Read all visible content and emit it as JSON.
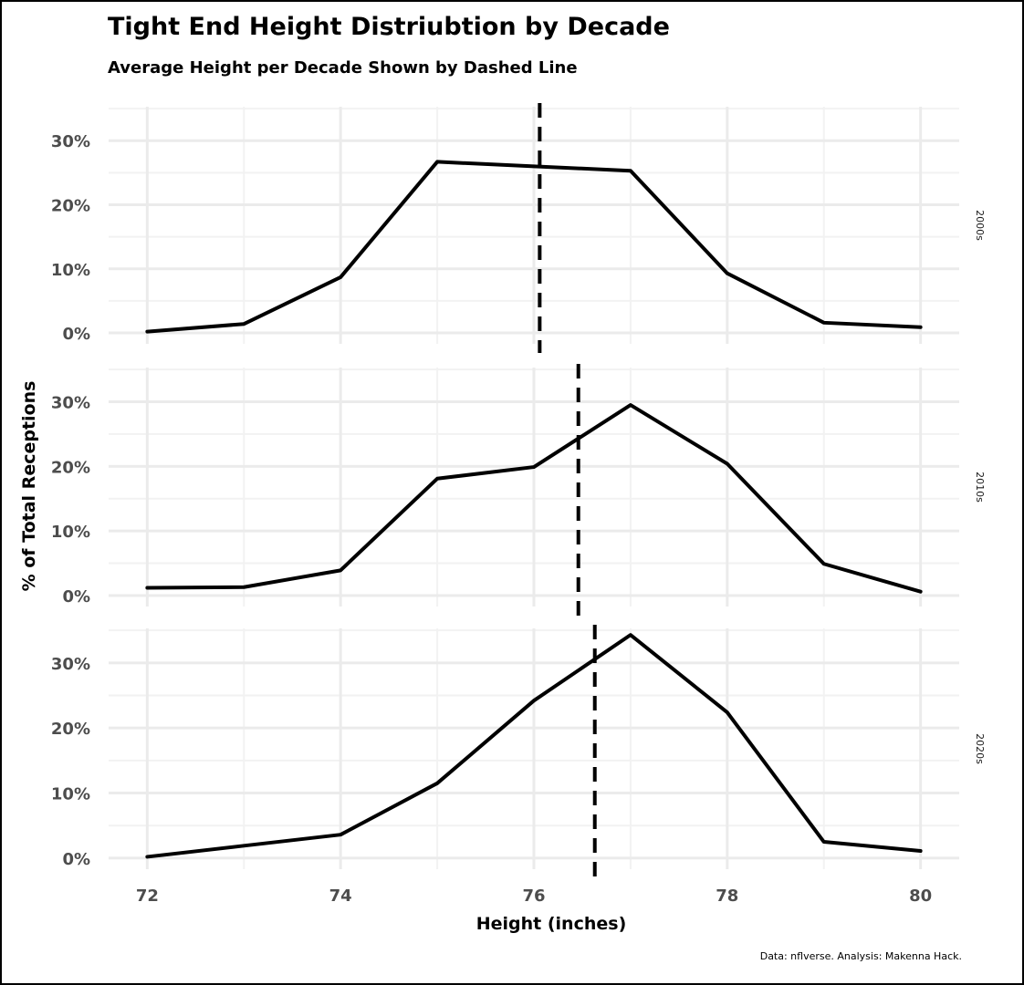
{
  "title": "Tight End Height Distriubtion by Decade",
  "subtitle": "Average Height per Decade Shown by Dashed Line",
  "caption": "Data: nflverse. Analysis: Makenna Hack.",
  "colors": {
    "line": "#000000",
    "grid_major": "#ebebeb",
    "grid_minor": "#f2f2f2",
    "tick_text": "#4d4d4d"
  },
  "chart_data": {
    "type": "line",
    "xlabel": "Height (inches)",
    "ylabel": "% of Total Receptions",
    "x": [
      72,
      73,
      74,
      75,
      76,
      77,
      78,
      79,
      80
    ],
    "x_ticks": [
      72,
      74,
      76,
      78,
      80
    ],
    "x_tick_labels": [
      "72",
      "74",
      "76",
      "78",
      "80"
    ],
    "xlim": [
      71.6,
      80.4
    ],
    "y_ticks": [
      0,
      10,
      20,
      30
    ],
    "y_tick_labels": [
      "0%",
      "10%",
      "20%",
      "30%"
    ],
    "ylim": [
      -1.7,
      35.3
    ],
    "grid": true,
    "facets": [
      "2000s",
      "2010s",
      "2020s"
    ],
    "series": [
      {
        "facet": "2000s",
        "values": [
          0.2,
          1.4,
          8.7,
          26.7,
          26.0,
          25.3,
          9.3,
          1.6,
          0.9
        ],
        "mean": 76.06
      },
      {
        "facet": "2010s",
        "values": [
          1.2,
          1.3,
          3.9,
          18.1,
          19.9,
          29.5,
          20.4,
          4.9,
          0.6
        ],
        "mean": 76.46
      },
      {
        "facet": "2020s",
        "values": [
          0.2,
          1.9,
          3.6,
          11.5,
          24.2,
          34.3,
          22.4,
          2.5,
          1.1
        ],
        "mean": 76.63
      }
    ]
  }
}
